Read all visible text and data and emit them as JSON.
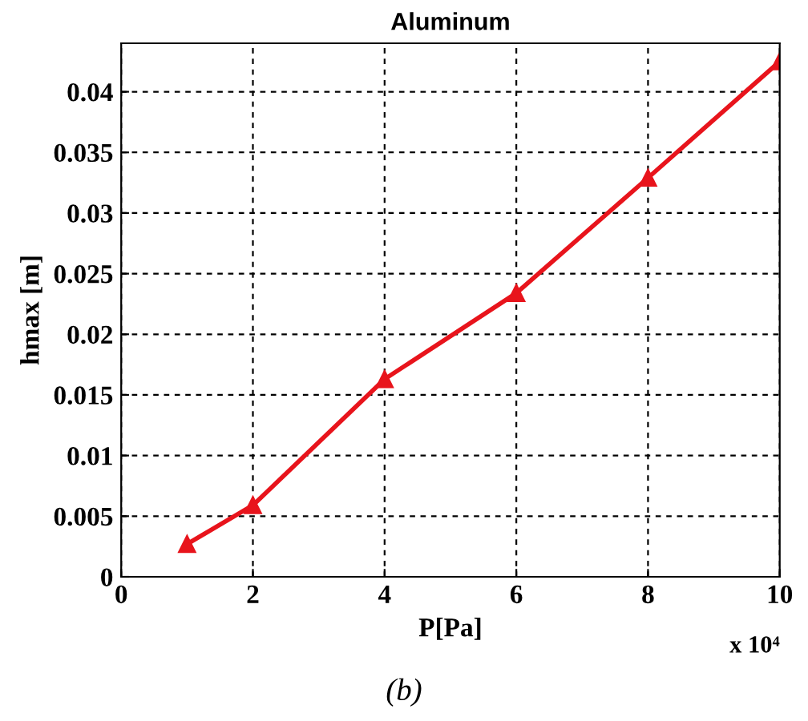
{
  "chart_data": {
    "type": "line",
    "title": "Aluminum",
    "xlabel": "P[Pa]",
    "ylabel": "hmax [m]",
    "annotations": [
      "x 10⁴",
      "(b)"
    ],
    "x": [
      1,
      2,
      4,
      6,
      8,
      10
    ],
    "series": [
      {
        "color": "#e8141c",
        "values": [
          0.0027,
          0.0059,
          0.0163,
          0.0234,
          0.0329,
          0.0425
        ]
      }
    ],
    "xlim": [
      0,
      10
    ],
    "xticks": [
      0,
      2,
      4,
      6,
      8,
      10
    ],
    "ylim": [
      0,
      0.044
    ],
    "yticks": [
      0,
      0.005,
      0.01,
      0.015,
      0.02,
      0.025,
      0.03,
      0.035,
      0.04
    ],
    "grid": true,
    "marker": "triangle",
    "line_style": "solid",
    "legend": false
  }
}
